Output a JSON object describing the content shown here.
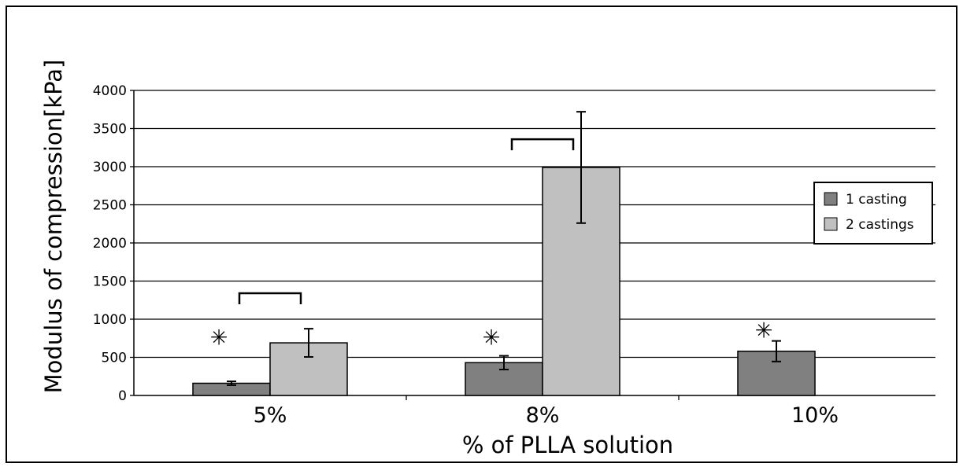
{
  "chart_data": {
    "type": "bar",
    "title": "",
    "xlabel": "% of PLLA solution",
    "ylabel": "Modulus of compression[kPa]",
    "ylim": [
      0,
      4000
    ],
    "yticks": [
      0,
      500,
      1000,
      1500,
      2000,
      2500,
      3000,
      3500,
      4000
    ],
    "categories": [
      "5%",
      "8%",
      "10%"
    ],
    "grid": true,
    "legend_position": "right",
    "series": [
      {
        "name": "1 casting",
        "color": "#808080",
        "values": [
          160,
          430,
          580
        ],
        "errors": [
          25,
          90,
          135
        ]
      },
      {
        "name": "2 castings",
        "color": "#c0c0c0",
        "values": [
          690,
          2990,
          null
        ],
        "errors": [
          185,
          730,
          null
        ]
      }
    ],
    "annotations": {
      "asterisk_symbol": "✳",
      "asterisks": [
        {
          "category": 0,
          "y": 760
        },
        {
          "category": 1,
          "y": 760
        },
        {
          "category": 2,
          "y": 850
        }
      ],
      "brackets": [
        {
          "category": 0,
          "y": 1340
        },
        {
          "category": 1,
          "y": 3360
        }
      ]
    }
  }
}
